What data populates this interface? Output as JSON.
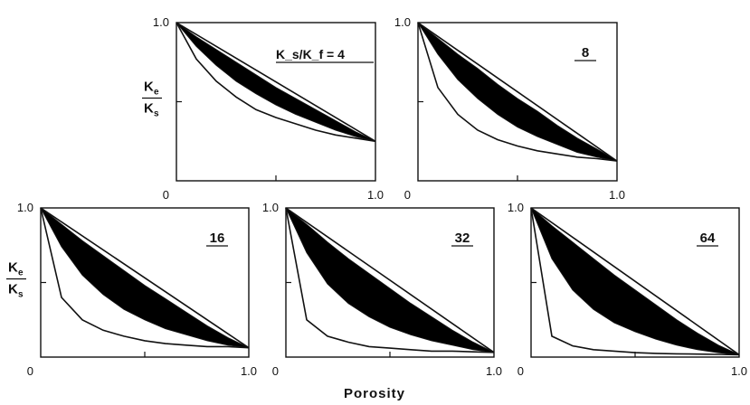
{
  "chart_data": [
    {
      "type": "area",
      "panel_label": "K_s/K_f = 4",
      "ratio": 4,
      "ylabel_num": "K",
      "ylabel_num_sub": "e",
      "ylabel_den": "K",
      "ylabel_den_sub": "s",
      "xlim": [
        0,
        1
      ],
      "ylim": [
        0,
        1
      ],
      "x_ticks": [
        "0",
        "1.0"
      ],
      "y_ticks": [
        "1.0"
      ],
      "min_value_at_full_porosity": 0.25,
      "series": [
        {
          "role": "voigt-upper",
          "x": [
            0,
            1
          ],
          "y": [
            1,
            0.25
          ]
        },
        {
          "role": "hs-upper-band",
          "x": [
            0,
            0.1,
            0.2,
            0.3,
            0.4,
            0.5,
            0.6,
            0.7,
            0.8,
            0.9,
            1
          ],
          "y": [
            1,
            0.91,
            0.83,
            0.75,
            0.67,
            0.59,
            0.52,
            0.45,
            0.38,
            0.31,
            0.25
          ]
        },
        {
          "role": "hs-lower-band",
          "x": [
            0,
            0.1,
            0.2,
            0.3,
            0.4,
            0.5,
            0.6,
            0.7,
            0.8,
            0.9,
            1
          ],
          "y": [
            1,
            0.85,
            0.73,
            0.63,
            0.55,
            0.48,
            0.42,
            0.37,
            0.32,
            0.28,
            0.25
          ]
        },
        {
          "role": "reuss-lower",
          "x": [
            0,
            0.1,
            0.2,
            0.3,
            0.4,
            0.5,
            0.6,
            0.7,
            0.8,
            0.9,
            1
          ],
          "y": [
            1,
            0.77,
            0.63,
            0.53,
            0.45,
            0.4,
            0.36,
            0.32,
            0.29,
            0.27,
            0.25
          ]
        }
      ]
    },
    {
      "type": "area",
      "panel_label": "8",
      "ratio": 8,
      "xlim": [
        0,
        1
      ],
      "ylim": [
        0,
        1
      ],
      "x_ticks": [
        "0",
        "1.0"
      ],
      "y_ticks": [
        "1.0"
      ],
      "min_value_at_full_porosity": 0.125,
      "series": [
        {
          "role": "voigt-upper",
          "x": [
            0,
            1
          ],
          "y": [
            1,
            0.125
          ]
        },
        {
          "role": "hs-upper-band",
          "x": [
            0,
            0.1,
            0.2,
            0.3,
            0.4,
            0.5,
            0.6,
            0.7,
            0.8,
            0.9,
            1
          ],
          "y": [
            1,
            0.9,
            0.8,
            0.71,
            0.61,
            0.52,
            0.44,
            0.35,
            0.27,
            0.2,
            0.125
          ]
        },
        {
          "role": "hs-lower-band",
          "x": [
            0,
            0.1,
            0.2,
            0.3,
            0.4,
            0.5,
            0.6,
            0.7,
            0.8,
            0.9,
            1
          ],
          "y": [
            1,
            0.8,
            0.64,
            0.52,
            0.42,
            0.34,
            0.28,
            0.23,
            0.18,
            0.15,
            0.125
          ]
        },
        {
          "role": "reuss-lower",
          "x": [
            0,
            0.1,
            0.2,
            0.3,
            0.4,
            0.5,
            0.6,
            0.7,
            0.8,
            0.9,
            1
          ],
          "y": [
            1,
            0.59,
            0.42,
            0.32,
            0.26,
            0.22,
            0.19,
            0.17,
            0.15,
            0.14,
            0.125
          ]
        }
      ]
    },
    {
      "type": "area",
      "panel_label": "16",
      "ratio": 16,
      "ylabel_num": "K",
      "ylabel_num_sub": "e",
      "ylabel_den": "K",
      "ylabel_den_sub": "s",
      "xlim": [
        0,
        1
      ],
      "ylim": [
        0,
        1
      ],
      "x_ticks": [
        "0",
        "1.0"
      ],
      "y_ticks": [
        "1.0"
      ],
      "min_value_at_full_porosity": 0.0625,
      "series": [
        {
          "role": "voigt-upper",
          "x": [
            0,
            1
          ],
          "y": [
            1,
            0.0625
          ]
        },
        {
          "role": "hs-upper-band",
          "x": [
            0,
            0.1,
            0.2,
            0.3,
            0.4,
            0.5,
            0.6,
            0.7,
            0.8,
            0.9,
            1
          ],
          "y": [
            1,
            0.89,
            0.78,
            0.68,
            0.58,
            0.48,
            0.39,
            0.3,
            0.21,
            0.13,
            0.0625
          ]
        },
        {
          "role": "hs-lower-band",
          "x": [
            0,
            0.1,
            0.2,
            0.3,
            0.4,
            0.5,
            0.6,
            0.7,
            0.8,
            0.9,
            1
          ],
          "y": [
            1,
            0.74,
            0.55,
            0.42,
            0.32,
            0.25,
            0.19,
            0.15,
            0.11,
            0.08,
            0.0625
          ]
        },
        {
          "role": "reuss-lower",
          "x": [
            0,
            0.1,
            0.2,
            0.3,
            0.4,
            0.5,
            0.6,
            0.7,
            0.8,
            0.9,
            1
          ],
          "y": [
            1,
            0.4,
            0.25,
            0.18,
            0.14,
            0.11,
            0.09,
            0.08,
            0.07,
            0.07,
            0.0625
          ]
        }
      ]
    },
    {
      "type": "area",
      "panel_label": "32",
      "ratio": 32,
      "xlim": [
        0,
        1
      ],
      "ylim": [
        0,
        1
      ],
      "x_ticks": [
        "0",
        "1.0"
      ],
      "y_ticks": [
        "1.0"
      ],
      "min_value_at_full_porosity": 0.03125,
      "series": [
        {
          "role": "voigt-upper",
          "x": [
            0,
            1
          ],
          "y": [
            1,
            0.03125
          ]
        },
        {
          "role": "hs-upper-band",
          "x": [
            0,
            0.1,
            0.2,
            0.3,
            0.4,
            0.5,
            0.6,
            0.7,
            0.8,
            0.9,
            1
          ],
          "y": [
            1,
            0.89,
            0.77,
            0.66,
            0.56,
            0.46,
            0.36,
            0.27,
            0.18,
            0.1,
            0.03125
          ]
        },
        {
          "role": "hs-lower-band",
          "x": [
            0,
            0.1,
            0.2,
            0.3,
            0.4,
            0.5,
            0.6,
            0.7,
            0.8,
            0.9,
            1
          ],
          "y": [
            1,
            0.7,
            0.49,
            0.36,
            0.27,
            0.2,
            0.15,
            0.11,
            0.08,
            0.05,
            0.03125
          ]
        },
        {
          "role": "reuss-lower",
          "x": [
            0,
            0.1,
            0.2,
            0.3,
            0.4,
            0.5,
            0.6,
            0.7,
            0.8,
            0.9,
            1
          ],
          "y": [
            1,
            0.25,
            0.14,
            0.1,
            0.07,
            0.06,
            0.05,
            0.04,
            0.04,
            0.035,
            0.03125
          ]
        }
      ]
    },
    {
      "type": "area",
      "panel_label": "64",
      "ratio": 64,
      "xlim": [
        0,
        1
      ],
      "ylim": [
        0,
        1
      ],
      "x_ticks": [
        "0",
        "1.0"
      ],
      "y_ticks": [
        "1.0"
      ],
      "min_value_at_full_porosity": 0.015625,
      "series": [
        {
          "role": "voigt-upper",
          "x": [
            0,
            1
          ],
          "y": [
            1,
            0.015625
          ]
        },
        {
          "role": "hs-upper-band",
          "x": [
            0,
            0.1,
            0.2,
            0.3,
            0.4,
            0.5,
            0.6,
            0.7,
            0.8,
            0.9,
            1
          ],
          "y": [
            1,
            0.88,
            0.77,
            0.66,
            0.55,
            0.45,
            0.35,
            0.25,
            0.16,
            0.08,
            0.015625
          ]
        },
        {
          "role": "hs-lower-band",
          "x": [
            0,
            0.1,
            0.2,
            0.3,
            0.4,
            0.5,
            0.6,
            0.7,
            0.8,
            0.9,
            1
          ],
          "y": [
            1,
            0.66,
            0.45,
            0.32,
            0.23,
            0.17,
            0.12,
            0.08,
            0.05,
            0.03,
            0.015625
          ]
        },
        {
          "role": "reuss-lower",
          "x": [
            0,
            0.1,
            0.2,
            0.3,
            0.4,
            0.5,
            0.6,
            0.7,
            0.8,
            0.9,
            1
          ],
          "y": [
            1,
            0.14,
            0.075,
            0.05,
            0.04,
            0.03,
            0.025,
            0.022,
            0.02,
            0.018,
            0.015625
          ]
        }
      ]
    }
  ],
  "shared_xlabel": "Porosity",
  "colors": {
    "band_fill": "#000000",
    "line": "#111111",
    "background": "#ffffff"
  }
}
